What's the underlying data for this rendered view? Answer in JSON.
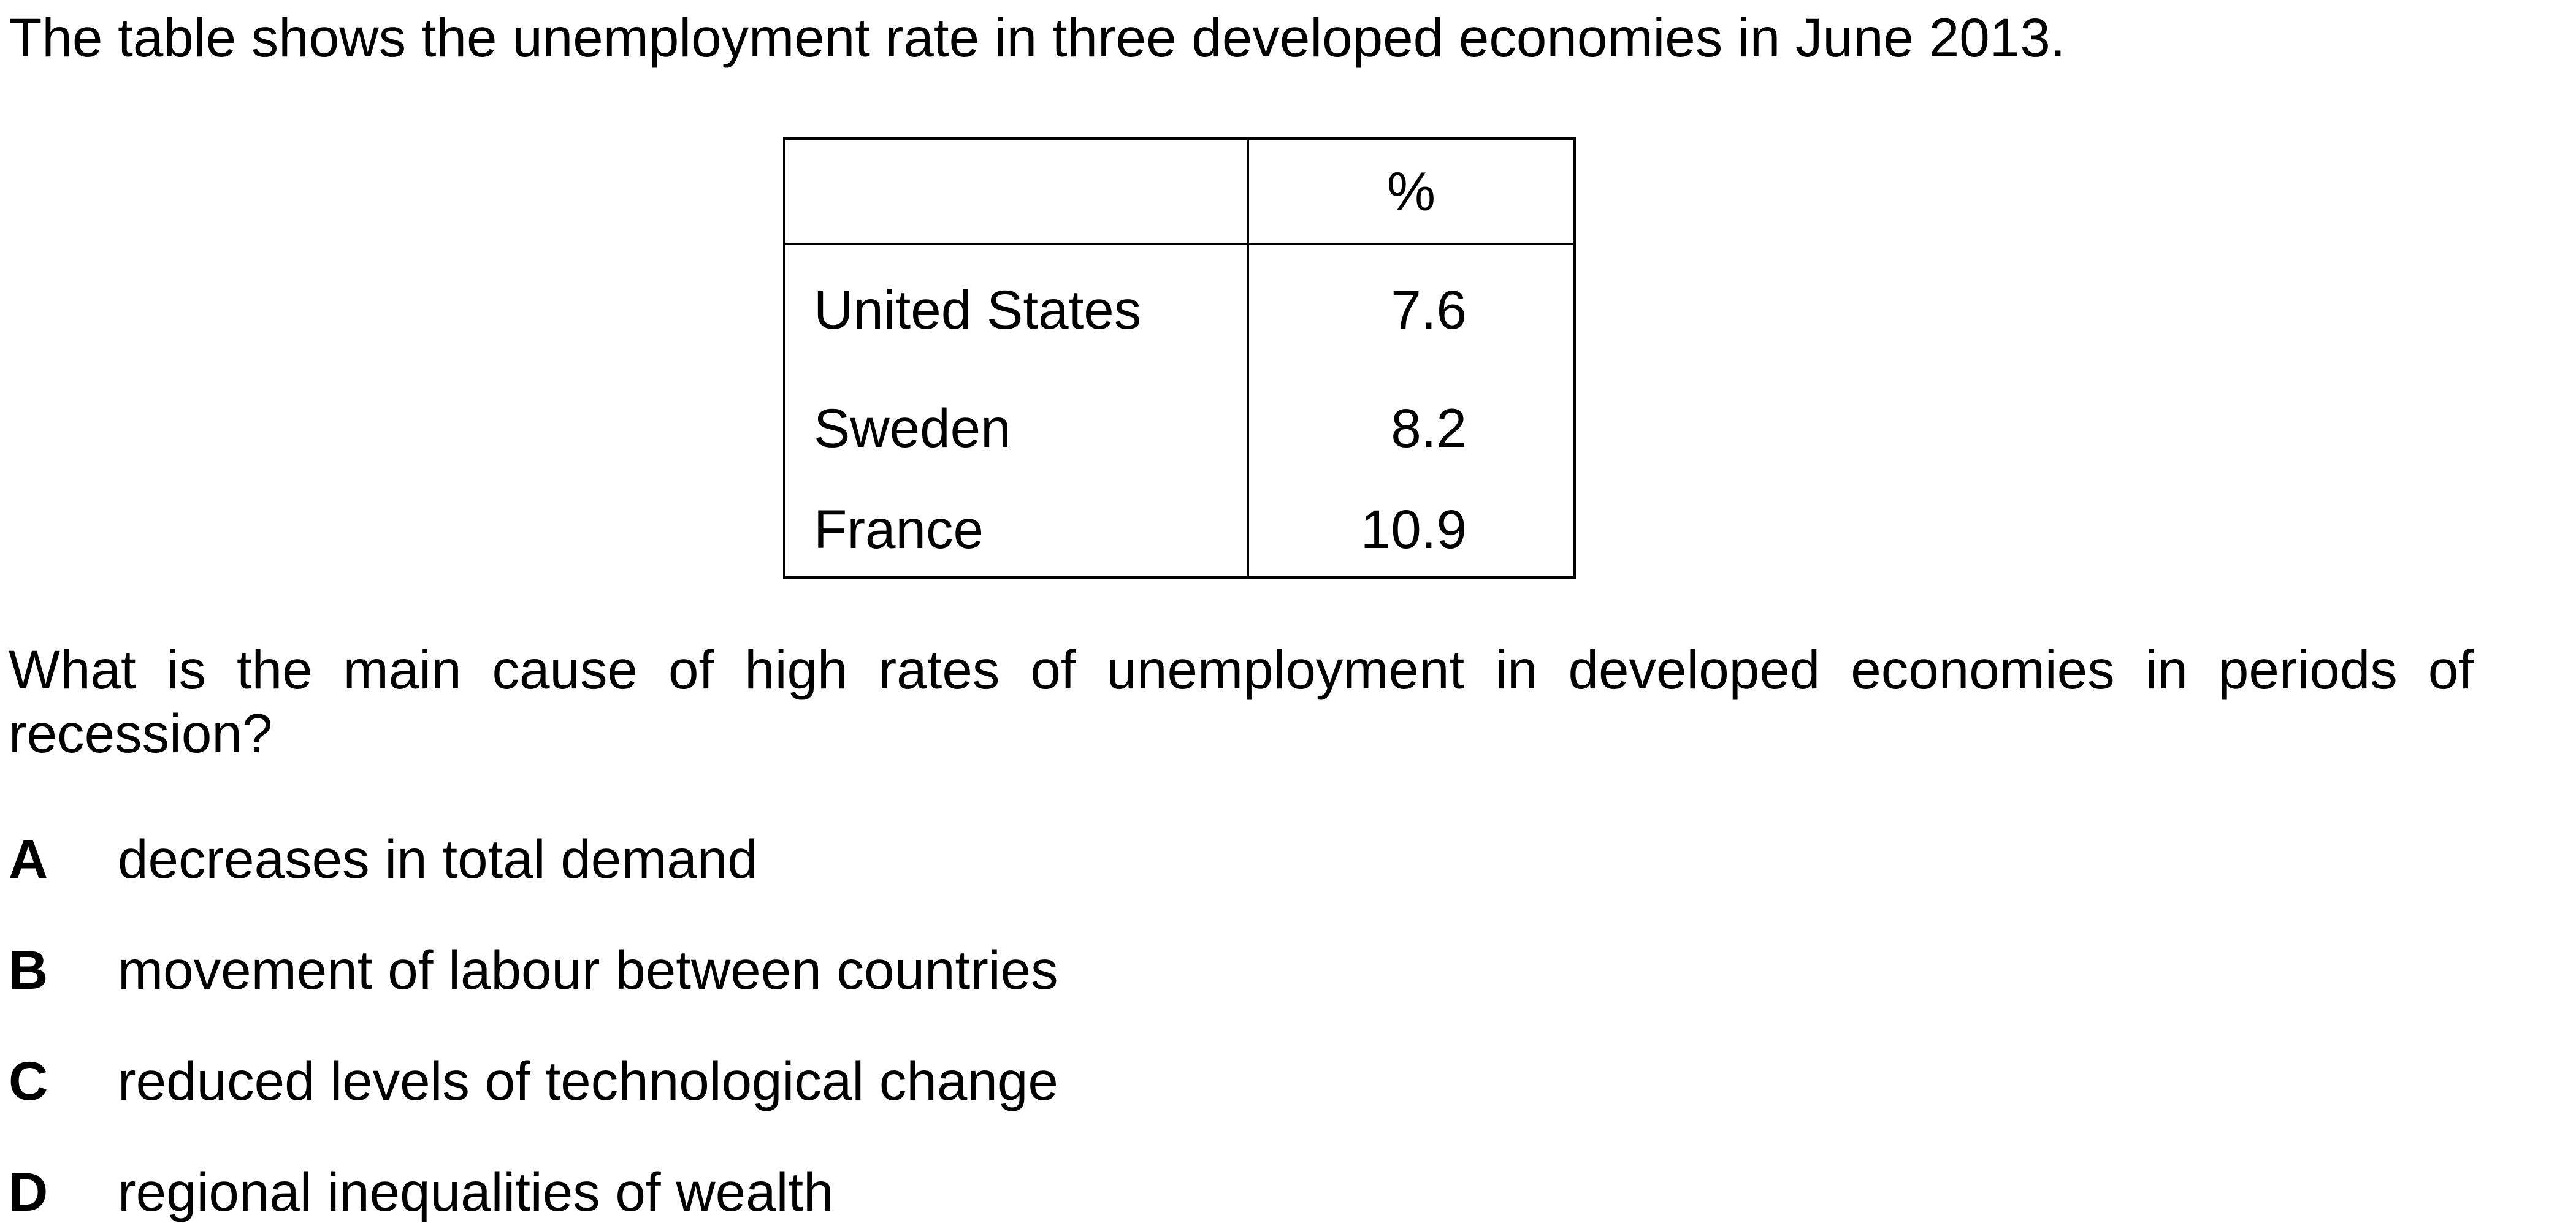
{
  "intro": "The table shows the unemployment rate in three developed economies in June 2013.",
  "table": {
    "header": [
      "",
      "%"
    ],
    "rows": [
      {
        "country": "United States",
        "value": "7.6"
      },
      {
        "country": "Sweden",
        "value": "8.2"
      },
      {
        "country": "France",
        "value": "10.9"
      }
    ]
  },
  "question": "What is the main cause of high rates of unemployment in developed economies in periods of recession?",
  "options": [
    {
      "letter": "A",
      "text": "decreases in total demand"
    },
    {
      "letter": "B",
      "text": "movement of labour between countries"
    },
    {
      "letter": "C",
      "text": "reduced levels of technological change"
    },
    {
      "letter": "D",
      "text": "regional inequalities of wealth"
    }
  ]
}
